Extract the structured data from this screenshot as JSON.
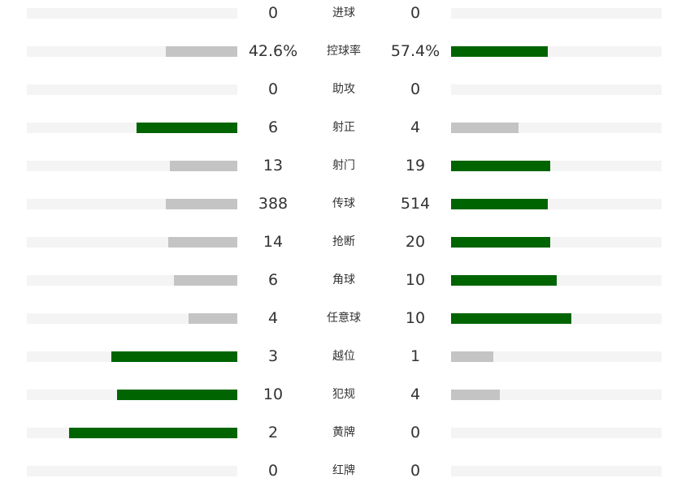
{
  "colors": {
    "higher": "#006400",
    "lower": "#c4c4c4",
    "track": "#f4f4f4",
    "text": "#333333"
  },
  "chart_data": {
    "type": "bar",
    "categories": [
      "进球",
      "控球率",
      "助攻",
      "射正",
      "射门",
      "传球",
      "抢断",
      "角球",
      "任意球",
      "越位",
      "犯规",
      "黄牌",
      "红牌"
    ],
    "series": [
      {
        "values": [
          0,
          42.6,
          0,
          6,
          13,
          388,
          14,
          6,
          4,
          3,
          10,
          2,
          0
        ],
        "labels": [
          "0",
          "42.6%",
          "0",
          "6",
          "13",
          "388",
          "14",
          "6",
          "4",
          "3",
          "10",
          "2",
          "0"
        ]
      },
      {
        "values": [
          0,
          57.4,
          0,
          4,
          19,
          514,
          20,
          10,
          10,
          1,
          4,
          0,
          0
        ],
        "labels": [
          "0",
          "57.4%",
          "0",
          "4",
          "19",
          "514",
          "20",
          "10",
          "10",
          "1",
          "4",
          "0",
          "0"
        ]
      }
    ],
    "fill_fraction": {
      "left": [
        0,
        0.34,
        0,
        0.48,
        0.32,
        0.34,
        0.33,
        0.3,
        0.23,
        0.6,
        0.57,
        0.8,
        0
      ],
      "right": [
        0,
        0.46,
        0,
        0.32,
        0.47,
        0.46,
        0.47,
        0.5,
        0.57,
        0.2,
        0.23,
        0,
        0
      ]
    }
  }
}
